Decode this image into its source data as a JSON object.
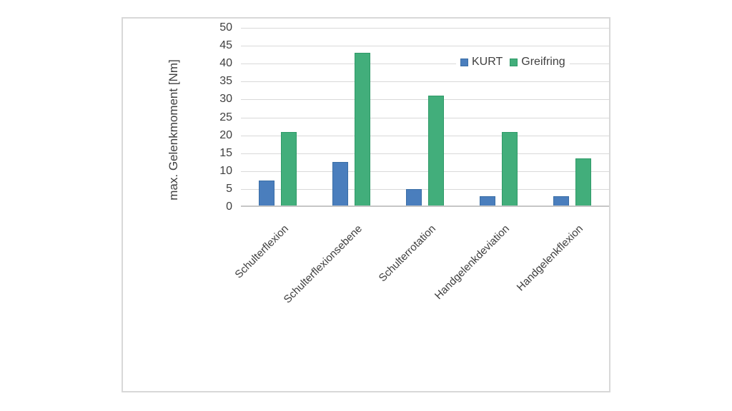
{
  "figure": {
    "background": "#ffffff",
    "border_color": "#d8d8d8"
  },
  "styles": {
    "text_color": "#3f3f3f",
    "gridline_color": "#d9d9d9",
    "axisline_color": "#c6c6c6"
  },
  "chart_data": {
    "type": "bar",
    "title": "",
    "xlabel": "",
    "ylabel": "max. Gelenkmoment [Nm]",
    "ylim": [
      0,
      50
    ],
    "ytick_step": 5,
    "yticks": [
      0,
      5,
      10,
      15,
      20,
      25,
      30,
      35,
      40,
      45,
      50
    ],
    "grid": "horizontal",
    "legend_position": "top-right-inside",
    "categories": [
      "Schulterflexion",
      "Schulterflexionsebene",
      "Schulterrotation",
      "Handgelenkdeviation",
      "Handgelenkflexion"
    ],
    "series": [
      {
        "name": "KURT",
        "color": "#4a7ebd",
        "border_color": "#3a6ea6",
        "values": [
          7.3,
          12.5,
          5,
          3,
          3
        ]
      },
      {
        "name": "Greifring",
        "color": "#42ae7b",
        "border_color": "#2f9a68",
        "values": [
          21,
          43,
          31,
          21,
          13.5
        ]
      }
    ]
  }
}
